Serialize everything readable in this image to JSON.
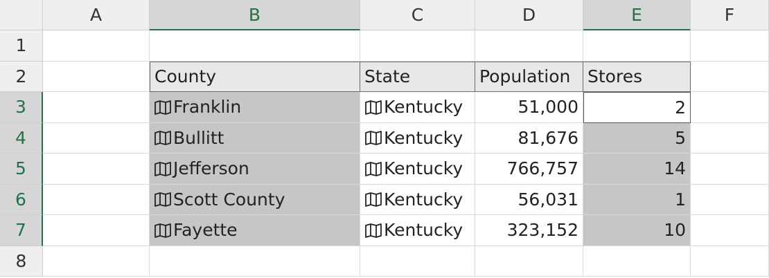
{
  "columns": [
    "A",
    "B",
    "C",
    "D",
    "E",
    "F"
  ],
  "rows": [
    "1",
    "2",
    "3",
    "4",
    "5",
    "6",
    "7",
    "8"
  ],
  "table": {
    "header": [
      "County",
      "State",
      "Population",
      "Stores"
    ],
    "rows": [
      [
        "Franklin",
        "Kentucky",
        "51,000",
        2
      ],
      [
        "Bullitt",
        "Kentucky",
        "81,676",
        5
      ],
      [
        "Jefferson",
        "Kentucky",
        "766,757",
        14
      ],
      [
        "Scott County",
        "Kentucky",
        "56,031",
        1
      ],
      [
        "Fayette",
        "Kentucky",
        "323,152",
        10
      ]
    ]
  }
}
